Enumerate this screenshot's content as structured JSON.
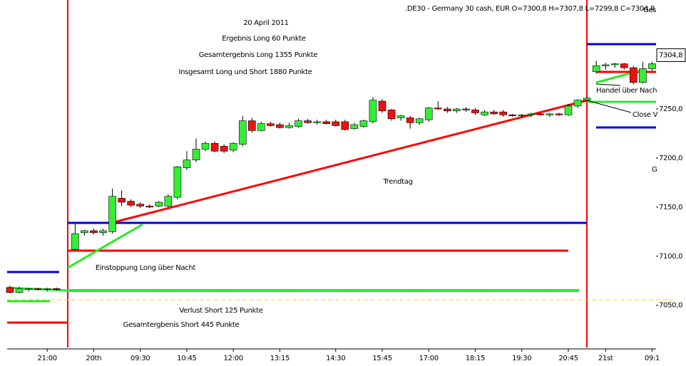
{
  "chart_data": {
    "type": "candlestick",
    "title": ".DE30 - Germany 30 cash, EUR O=7300,8 H=7307,8 L=7299,8 C=7304,8",
    "annotations": [
      "20 April 2011",
      "Ergebnis Long 60 Punkte",
      "Gesamtergebnis Long 1355 Punkte",
      "Insgesamt Long und Short 1880 Punkte",
      "Trendtag",
      "Einstoppung Long über Nacht",
      "Verlust Short 125 Punkte",
      "Gesamtergbenis Short 445 Punkte",
      "Handel über Nach",
      "Close V",
      "G",
      "Ges"
    ],
    "categories": [
      null,
      null,
      null,
      null,
      "21:00",
      null,
      null,
      null,
      null,
      "20th",
      null,
      null,
      null,
      null,
      "09:30",
      null,
      null,
      null,
      null,
      "10:45",
      null,
      null,
      null,
      null,
      "12:00",
      null,
      null,
      null,
      null,
      "13:15",
      null,
      null,
      null,
      null,
      null,
      "14:30",
      null,
      null,
      null,
      null,
      "15:45",
      null,
      null,
      null,
      null,
      "17:00",
      null,
      null,
      null,
      null,
      "18:15",
      null,
      null,
      null,
      null,
      "19:30",
      null,
      null,
      null,
      null,
      "20:45",
      null,
      null,
      null,
      "21st",
      null,
      null,
      null,
      null,
      "09:1"
    ],
    "open": [
      7068,
      7063,
      7066,
      7067,
      7066,
      7067,
      null,
      7107,
      7124,
      7126,
      7124,
      7125,
      7159,
      7156,
      7153,
      7151,
      7151,
      7151,
      7160,
      7190,
      7198,
      7209,
      7215,
      7212,
      7208,
      7214,
      7238,
      7228,
      7235,
      7234,
      7231,
      7232,
      7238,
      7236,
      7237,
      7237,
      7237,
      7230,
      7232,
      7237,
      7258,
      7249,
      7241,
      7241,
      7236,
      7239,
      7251,
      7250,
      7248,
      7250,
      7249,
      7244,
      7247,
      7247,
      7244,
      7243,
      7244,
      7245,
      7244,
      7245,
      7244,
      7253,
      7259,
      7288,
      7294,
      7295,
      7296,
      7292,
      7277,
      7291
    ],
    "high": [
      7070,
      7069,
      7068,
      7068,
      7068,
      7068,
      null,
      7133,
      7127,
      7128,
      7128,
      7169,
      7167,
      7158,
      7155,
      7153,
      7156,
      7163,
      7192,
      7207,
      7220,
      7217,
      7217,
      7214,
      7216,
      7243,
      7241,
      7237,
      7237,
      7236,
      7236,
      7240,
      7240,
      7239,
      7239,
      7239,
      7239,
      7236,
      7239,
      7262,
      7260,
      7250,
      7244,
      7243,
      7241,
      7252,
      7258,
      7252,
      7251,
      7252,
      7251,
      7249,
      7249,
      7249,
      7245,
      7245,
      7246,
      7246,
      7246,
      7246,
      7255,
      7260,
      7262,
      7299,
      7297,
      7297,
      7297,
      7294,
      7298,
      7298
    ],
    "low": [
      7062,
      7062,
      7064,
      7065,
      7064,
      7065,
      null,
      7106,
      7121,
      7122,
      7121,
      7123,
      7151,
      7150,
      7149,
      7149,
      7150,
      7150,
      7158,
      7188,
      7196,
      7207,
      7206,
      7205,
      7206,
      7212,
      7226,
      7227,
      7232,
      7230,
      7230,
      7231,
      7235,
      7234,
      7234,
      7232,
      7228,
      7229,
      7231,
      7235,
      7246,
      7238,
      7238,
      7230,
      7234,
      7237,
      7249,
      7246,
      7246,
      7247,
      7244,
      7243,
      7244,
      7242,
      7242,
      7241,
      7242,
      7243,
      7242,
      7243,
      7243,
      7251,
      7258,
      7286,
      7290,
      7292,
      7290,
      7275,
      7276,
      7289
    ],
    "close": [
      7063,
      7067,
      7067,
      7066,
      7067,
      7066,
      null,
      7123,
      7126,
      7124,
      7126,
      7161,
      7155,
      7152,
      7151,
      7150,
      7155,
      7161,
      7191,
      7198,
      7209,
      7215,
      7207,
      7207,
      7215,
      7238,
      7228,
      7235,
      7233,
      7231,
      7233,
      7238,
      7236,
      7237,
      7235,
      7233,
      7229,
      7234,
      7238,
      7259,
      7248,
      7240,
      7243,
      7236,
      7240,
      7251,
      7250,
      7248,
      7250,
      7249,
      7246,
      7247,
      7245,
      7244,
      7243,
      7244,
      7245,
      7244,
      7245,
      7244,
      7253,
      7259,
      7261,
      7294,
      7295,
      7296,
      7292,
      7277,
      7291,
      7296
    ],
    "up_color": "#33ee33",
    "down_color": "#ee1111",
    "ylim": [
      7007,
      7361
    ],
    "yticks": [
      {
        "value": 7050,
        "label": "7050,0"
      },
      {
        "value": 7100,
        "label": "7100,0"
      },
      {
        "value": 7150,
        "label": "7150,0"
      },
      {
        "value": 7200,
        "label": "7200,0"
      },
      {
        "value": 7250,
        "label": "7250,0"
      }
    ],
    "last_price": {
      "value": 7304.8,
      "label": "7304,8"
    },
    "grid": false
  }
}
